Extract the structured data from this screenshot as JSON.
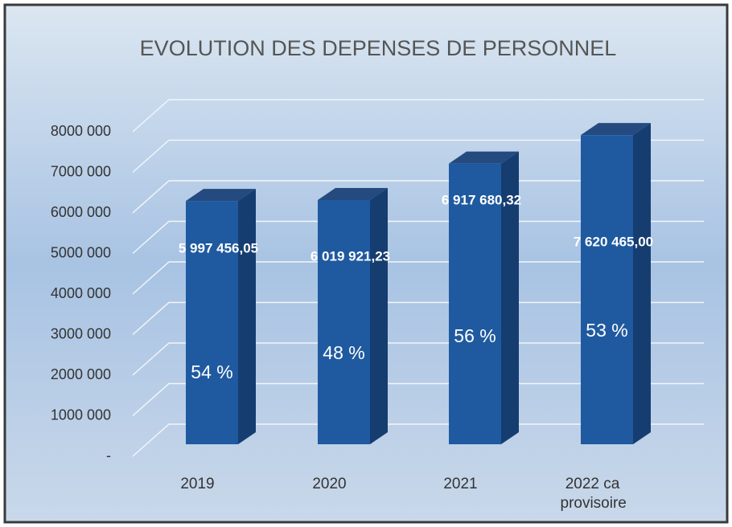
{
  "chart_data": {
    "type": "bar3d",
    "title": "EVOLUTION DES DEPENSES DE PERSONNEL",
    "categories": [
      "2019",
      "2020",
      "2021",
      "2022 ca provisoire"
    ],
    "values": [
      5997456.05,
      6019921.23,
      6917680.32,
      7620465.0
    ],
    "value_labels": [
      "5 997 456,05",
      "6 019 921,23",
      "6 917 680,32",
      "7 620 465,00"
    ],
    "shares": [
      54,
      48,
      56,
      53
    ],
    "share_labels": [
      "54 %",
      "48 %",
      "56 %",
      "53 %"
    ],
    "color": "#1f5aa0",
    "ylim": [
      0,
      8000000
    ],
    "yticks": [
      {
        "value": 0,
        "label": "-"
      },
      {
        "value": 1000000,
        "label": "1000 000"
      },
      {
        "value": 2000000,
        "label": "2000 000"
      },
      {
        "value": 3000000,
        "label": "3000 000"
      },
      {
        "value": 4000000,
        "label": "4000 000"
      },
      {
        "value": 5000000,
        "label": "5000 000"
      },
      {
        "value": 6000000,
        "label": "6000 000"
      },
      {
        "value": 7000000,
        "label": "7000 000"
      },
      {
        "value": 8000000,
        "label": "8000 000"
      }
    ],
    "grid": true
  }
}
